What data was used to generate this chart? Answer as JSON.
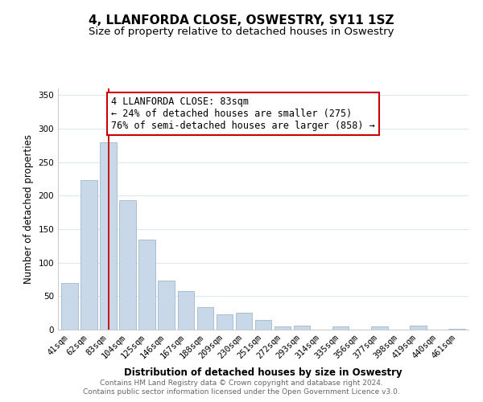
{
  "title": "4, LLANFORDA CLOSE, OSWESTRY, SY11 1SZ",
  "subtitle": "Size of property relative to detached houses in Oswestry",
  "xlabel": "Distribution of detached houses by size in Oswestry",
  "ylabel": "Number of detached properties",
  "bar_labels": [
    "41sqm",
    "62sqm",
    "83sqm",
    "104sqm",
    "125sqm",
    "146sqm",
    "167sqm",
    "188sqm",
    "209sqm",
    "230sqm",
    "251sqm",
    "272sqm",
    "293sqm",
    "314sqm",
    "335sqm",
    "356sqm",
    "377sqm",
    "398sqm",
    "419sqm",
    "440sqm",
    "461sqm"
  ],
  "bar_values": [
    70,
    223,
    280,
    193,
    134,
    73,
    58,
    34,
    23,
    25,
    15,
    5,
    6,
    0,
    5,
    0,
    5,
    0,
    6,
    0,
    1
  ],
  "bar_color": "#c8d8e8",
  "bar_edge_color": "#a0b8cc",
  "highlight_bar_index": 2,
  "highlight_line_color": "#cc0000",
  "annotation_text": "4 LLANFORDA CLOSE: 83sqm\n← 24% of detached houses are smaller (275)\n76% of semi-detached houses are larger (858) →",
  "annotation_box_color": "#ffffff",
  "annotation_box_edge_color": "#cc0000",
  "ylim": [
    0,
    360
  ],
  "yticks": [
    0,
    50,
    100,
    150,
    200,
    250,
    300,
    350
  ],
  "footer_line1": "Contains HM Land Registry data © Crown copyright and database right 2024.",
  "footer_line2": "Contains public sector information licensed under the Open Government Licence v3.0.",
  "background_color": "#ffffff",
  "grid_color": "#dce8f0",
  "title_fontsize": 11,
  "subtitle_fontsize": 9.5,
  "axis_label_fontsize": 8.5,
  "tick_fontsize": 7.5,
  "footer_fontsize": 6.5,
  "annotation_fontsize": 8.5
}
